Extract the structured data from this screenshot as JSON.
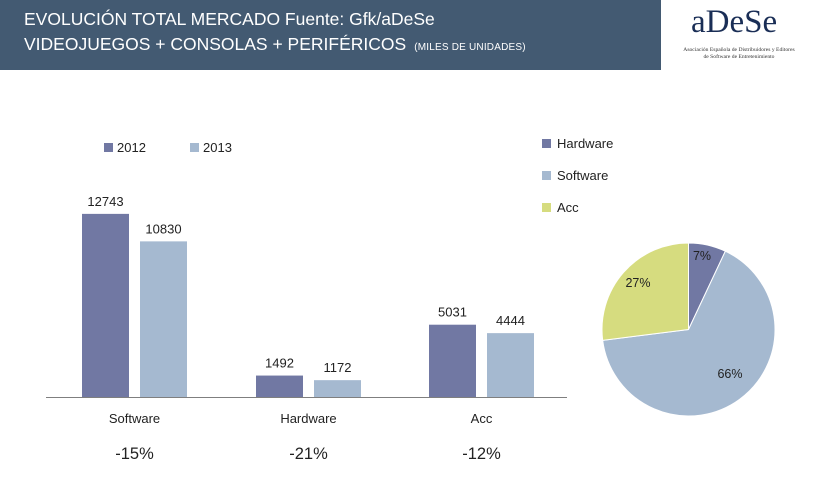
{
  "header": {
    "line1": "EVOLUCIÓN TOTAL MERCADO Fuente: Gfk/aDeSe",
    "line2": "VIDEOJUEGOS + CONSOLAS + PERIFÉRICOS",
    "line2_note": "(MILES DE UNIDADES)"
  },
  "logo": {
    "wordmark": "aDeSe",
    "tagline_1": "Asociación Española de Distribuidores y Editores",
    "tagline_2": "de Software de Entretenimiento"
  },
  "colors": {
    "header_bg": "#435a72",
    "series_2012": "#7178a3",
    "series_2013": "#a5b9d0",
    "pie_hardware": "#7178a3",
    "pie_software": "#a5b9d0",
    "pie_acc": "#d6dc7f"
  },
  "chart_data": [
    {
      "type": "bar",
      "categories": [
        "Software",
        "Hardware",
        "Acc"
      ],
      "series": [
        {
          "name": "2012",
          "values": [
            12743,
            1492,
            5031
          ]
        },
        {
          "name": "2013",
          "values": [
            10830,
            1172,
            4444
          ]
        }
      ],
      "data_labels": [
        [
          "12743",
          "1492",
          "5031"
        ],
        [
          "10830",
          "1172",
          "4444"
        ]
      ],
      "variations": [
        "-15%",
        "-21%",
        "-12%"
      ],
      "ylim": [
        0,
        13500
      ],
      "grid": false,
      "legend": "top-left"
    },
    {
      "type": "pie",
      "categories": [
        "Hardware",
        "Software",
        "Acc"
      ],
      "values": [
        7,
        66,
        27
      ],
      "labels": [
        "7%",
        "66%",
        "27%"
      ],
      "legend": "top-left"
    }
  ]
}
